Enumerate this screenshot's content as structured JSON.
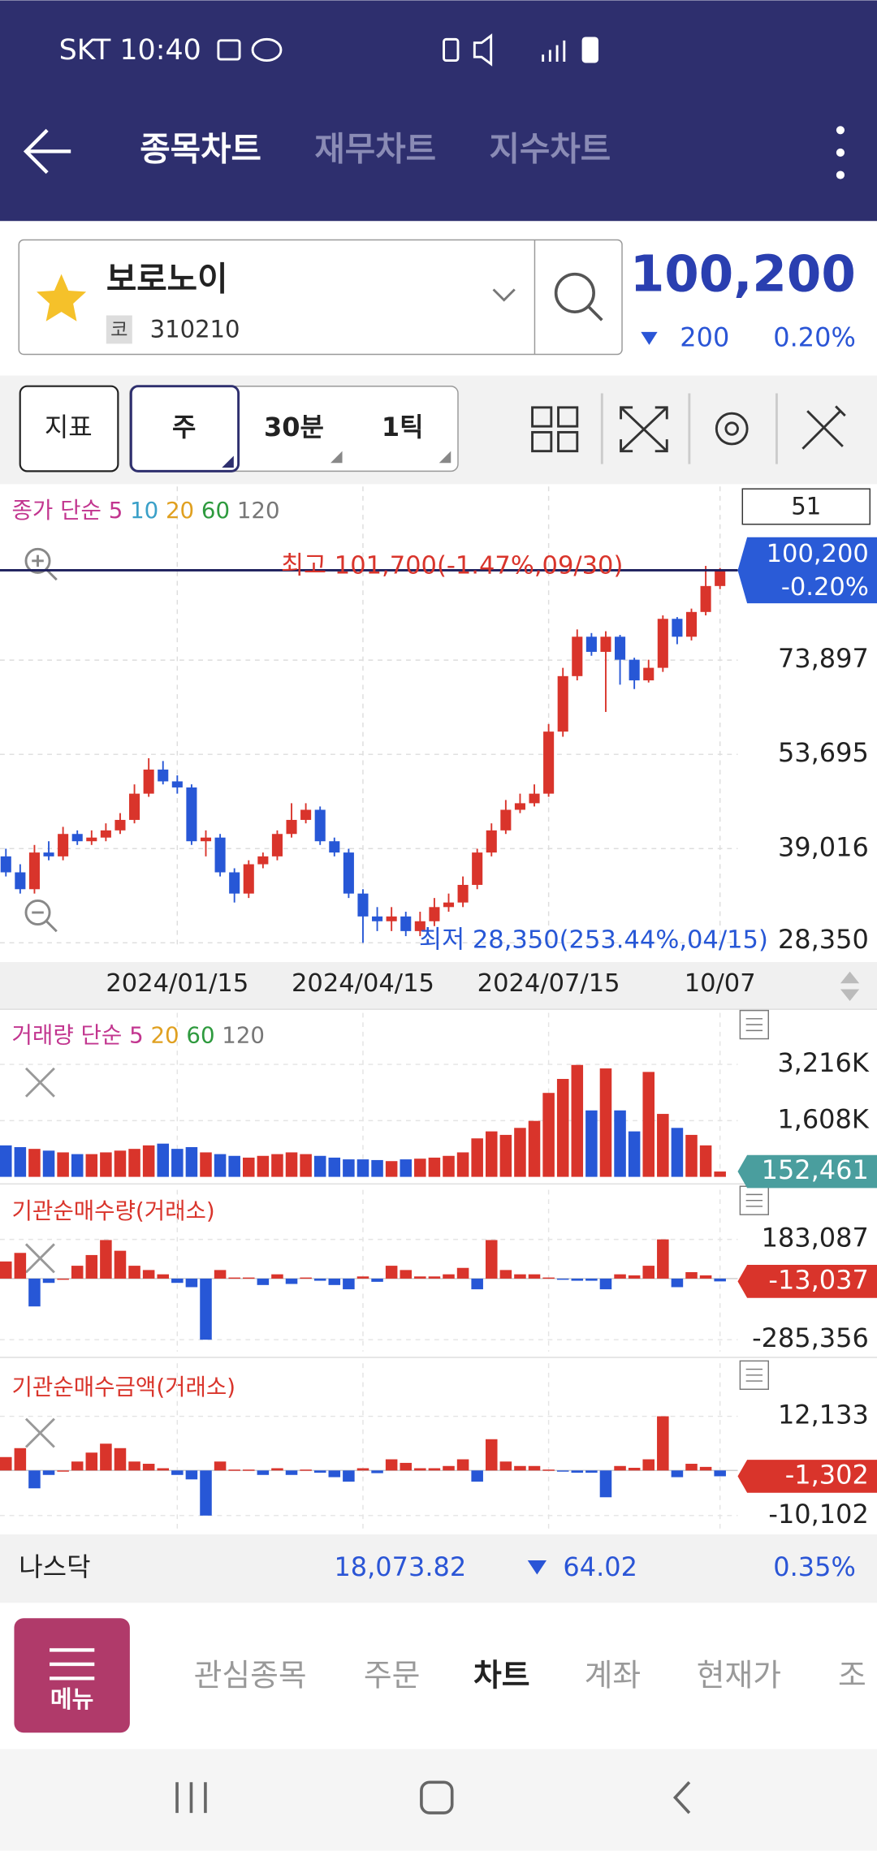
{
  "status_bar": {
    "carrier_time": "SKT 10:40"
  },
  "tabs": [
    "종목차트",
    "재무차트",
    "지수차트"
  ],
  "stock": {
    "name": "보로노이",
    "market_badge": "코",
    "code": "310210",
    "price": "100,200",
    "change": "200",
    "change_rate": "0.20%"
  },
  "toolbar": {
    "indicator": "지표",
    "periods": [
      "주",
      "30분",
      "1틱"
    ]
  },
  "price_chart": {
    "type": "candlestick",
    "legend": {
      "label": "종가 단순",
      "periods": [
        {
          "name": "5",
          "color": "#c2358f"
        },
        {
          "name": "10",
          "color": "#3aa0c8"
        },
        {
          "name": "20",
          "color": "#e0a020"
        },
        {
          "name": "60",
          "color": "#2e9a3e"
        },
        {
          "name": "120",
          "color": "#777777"
        }
      ]
    },
    "count": 51,
    "categories": [
      null,
      null,
      null,
      null,
      null,
      null,
      null,
      null,
      null,
      null,
      null,
      null,
      "2024/01/15",
      null,
      null,
      null,
      null,
      null,
      null,
      null,
      null,
      null,
      null,
      null,
      null,
      "2024/04/15",
      null,
      null,
      null,
      null,
      null,
      null,
      null,
      null,
      null,
      null,
      null,
      null,
      "2024/07/15",
      null,
      null,
      null,
      null,
      null,
      null,
      null,
      null,
      null,
      null,
      null,
      "10/07"
    ],
    "open": [
      38000,
      36000,
      34000,
      38500,
      38000,
      41000,
      40000,
      40500,
      41500,
      43000,
      47000,
      51000,
      49000,
      48000,
      40000,
      40500,
      36000,
      33500,
      37000,
      38000,
      41000,
      43000,
      44500,
      40000,
      38500,
      33500,
      31000,
      30500,
      31000,
      29500,
      30500,
      32000,
      32500,
      34500,
      38500,
      41500,
      44500,
      45500,
      47000,
      58000,
      70000,
      80000,
      76000,
      80000,
      74000,
      69000,
      72000,
      85000,
      80000,
      87000,
      95000
    ],
    "high": [
      39000,
      37000,
      39500,
      40000,
      42000,
      41500,
      41500,
      42500,
      44000,
      48500,
      53000,
      52500,
      50000,
      48500,
      41500,
      41000,
      36500,
      37500,
      38500,
      41500,
      45500,
      45500,
      45000,
      40500,
      39000,
      34000,
      32000,
      32000,
      31500,
      31500,
      33000,
      33500,
      35500,
      39000,
      42500,
      46000,
      47000,
      48500,
      59500,
      72000,
      82000,
      81000,
      81500,
      80500,
      74500,
      74000,
      86000,
      85500,
      88000,
      101700,
      101000
    ],
    "low": [
      35500,
      33500,
      33500,
      37500,
      37500,
      39500,
      39500,
      40000,
      41000,
      42500,
      46500,
      48500,
      47000,
      39500,
      38000,
      35500,
      32500,
      33000,
      36500,
      37500,
      40500,
      42500,
      39500,
      38000,
      33000,
      28350,
      29500,
      29500,
      29000,
      29000,
      30000,
      31500,
      32000,
      34000,
      38000,
      41000,
      44000,
      45000,
      46500,
      57000,
      69000,
      75000,
      62000,
      68000,
      67000,
      68500,
      71000,
      78000,
      79000,
      86000,
      94000
    ],
    "close": [
      36000,
      34000,
      38500,
      38000,
      41000,
      40000,
      40500,
      41500,
      43000,
      47000,
      51000,
      49000,
      48000,
      40000,
      40500,
      36000,
      33500,
      37000,
      38000,
      41000,
      43000,
      44500,
      40000,
      38500,
      33500,
      31000,
      30500,
      31000,
      29500,
      30500,
      32000,
      32500,
      34500,
      38500,
      41500,
      44500,
      45500,
      47000,
      58000,
      70000,
      80000,
      76000,
      80000,
      74000,
      69000,
      72000,
      85000,
      80000,
      87000,
      95000,
      100200
    ],
    "up_color": "#d9342b",
    "down_color": "#2757d6",
    "log": true,
    "ylim": [
      28200,
      133100
    ],
    "yticks": [
      {
        "value": 28350,
        "label": "28,350"
      },
      {
        "value": 39016,
        "label": "39,016"
      },
      {
        "value": 53695,
        "label": "53,695"
      },
      {
        "value": 73897,
        "label": "73,897"
      }
    ],
    "current": {
      "value": 100200,
      "label": "100,200"
    },
    "current_change": "-0.20%",
    "annotations": [
      "최고 101,700(-1.47%,09/30)",
      "최저 28,350(253.44%,04/15)"
    ]
  },
  "volume_chart": {
    "type": "bar",
    "legend": {
      "label": "거래량 단순",
      "periods": [
        {
          "name": "5",
          "color": "#c2358f"
        },
        {
          "name": "20",
          "color": "#e0a020"
        },
        {
          "name": "60",
          "color": "#2e9a3e"
        },
        {
          "name": "120",
          "color": "#777777"
        }
      ]
    },
    "values": [
      900000,
      850000,
      800000,
      750000,
      700000,
      650000,
      650000,
      700000,
      750000,
      800000,
      900000,
      950000,
      800000,
      850000,
      700000,
      650000,
      600000,
      550000,
      600000,
      650000,
      700000,
      650000,
      600000,
      550000,
      500000,
      500000,
      480000,
      450000,
      500000,
      520000,
      550000,
      600000,
      700000,
      1100000,
      1300000,
      1200000,
      1400000,
      1600000,
      2400000,
      2800000,
      3200000,
      1900000,
      3100000,
      1900000,
      1300000,
      3000000,
      1800000,
      1400000,
      1200000,
      900000,
      152461
    ],
    "ylim": [
      0,
      4690000
    ],
    "yticks": [
      {
        "value": 1608000,
        "label": "1,608K"
      },
      {
        "value": 3216000,
        "label": "3,216K"
      }
    ],
    "current": {
      "value": 152461,
      "label": "152,461"
    },
    "tag_color": "#4a9e9e"
  },
  "inst_qty_chart": {
    "type": "bar",
    "title": "기관순매수량(거래소)",
    "values": [
      80000,
      120000,
      -130000,
      -20000,
      0,
      60000,
      110000,
      180000,
      130000,
      60000,
      40000,
      20000,
      -20000,
      -40000,
      -285356,
      40000,
      5000,
      5000,
      -30000,
      20000,
      -25000,
      5000,
      -10000,
      -30000,
      -50000,
      10000,
      -15000,
      60000,
      40000,
      10000,
      10000,
      20000,
      50000,
      -50000,
      180000,
      40000,
      20000,
      20000,
      5000,
      -5000,
      -10000,
      -10000,
      -50000,
      20000,
      15000,
      60000,
      183087,
      -40000,
      30000,
      15000,
      -13037
    ],
    "ylim": [
      -340500,
      414500
    ],
    "yticks": [
      {
        "value": -285356,
        "label": "-285,356"
      },
      {
        "value": 183087,
        "label": "183,087"
      }
    ],
    "current": {
      "value": -13037,
      "label": "-13,037"
    },
    "tag_color": "#d9342b"
  },
  "inst_amount_chart": {
    "type": "bar",
    "title": "기관순매수금액(거래소)",
    "values": [
      3000,
      5000,
      -4000,
      -1000,
      0,
      2000,
      4000,
      6000,
      5000,
      2000,
      1500,
      500,
      -1000,
      -2000,
      -10102,
      2000,
      200,
      200,
      -1000,
      500,
      -1000,
      200,
      -500,
      -1500,
      -2500,
      500,
      -600,
      2500,
      1700,
      500,
      500,
      1000,
      2500,
      -2500,
      7000,
      2000,
      1000,
      1000,
      200,
      -200,
      -500,
      -500,
      -6000,
      1000,
      600,
      2500,
      12133,
      -1500,
      1500,
      800,
      -1302
    ],
    "ylim": [
      -13000,
      24000
    ],
    "yticks": [
      {
        "value": -10102,
        "label": "-10,102"
      },
      {
        "value": 12133,
        "label": "12,133"
      }
    ],
    "current": {
      "value": -1302,
      "label": "-1,302"
    },
    "tag_color": "#d9342b"
  },
  "index_bar": {
    "name": "나스닥",
    "value": "18,073.82",
    "change": "64.02",
    "change_rate": "0.35%"
  },
  "nav": {
    "menu": "메뉴",
    "items": [
      "관심종목",
      "주문",
      "차트",
      "계좌",
      "현재가",
      "조"
    ]
  }
}
